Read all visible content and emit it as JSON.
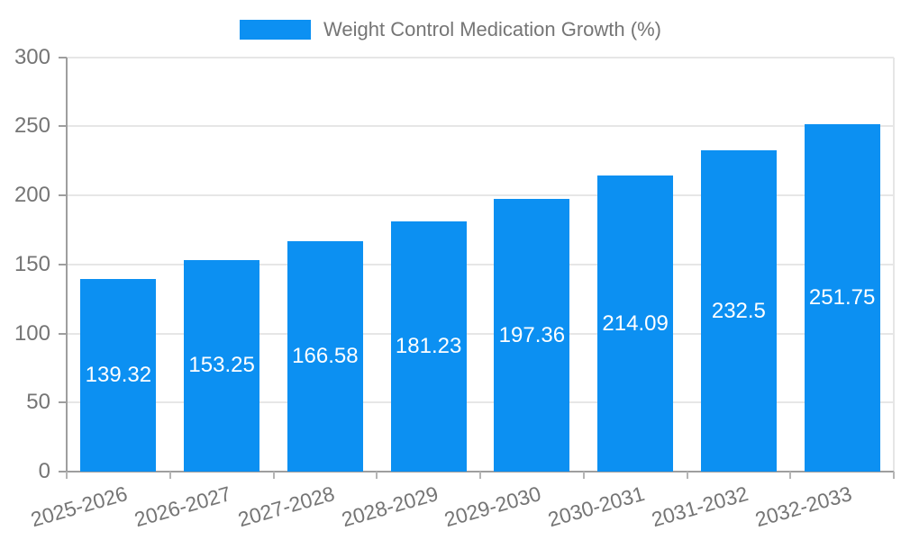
{
  "chart_data": {
    "type": "bar",
    "title": "Weight Control Medication Growth (%)",
    "legend": {
      "label": "Weight Control Medication Growth (%)",
      "position": "top-center"
    },
    "categories": [
      "2025-2026",
      "2026-2027",
      "2027-2028",
      "2028-2029",
      "2029-2030",
      "2030-2031",
      "2031-2032",
      "2032-2033"
    ],
    "values": [
      139.32,
      153.25,
      166.58,
      181.23,
      197.36,
      214.09,
      232.5,
      251.75
    ],
    "value_labels": [
      "139.32",
      "153.25",
      "166.58",
      "181.23",
      "197.36",
      "214.09",
      "232.5",
      "251.75"
    ],
    "xlabel": "",
    "ylabel": "",
    "ylim": [
      0,
      300
    ],
    "yticks": [
      0,
      50,
      100,
      150,
      200,
      250,
      300
    ],
    "grid": true,
    "bar_value_labels_inside": true,
    "x_labels_rotated": true,
    "colors": {
      "bar": "#0C90F2",
      "value_label": "#FFFFFF",
      "axis_text": "#757575",
      "gridline": "#E6E6E6",
      "axis_line": "#9E9E9E",
      "tick": "#B5B5B5"
    }
  }
}
